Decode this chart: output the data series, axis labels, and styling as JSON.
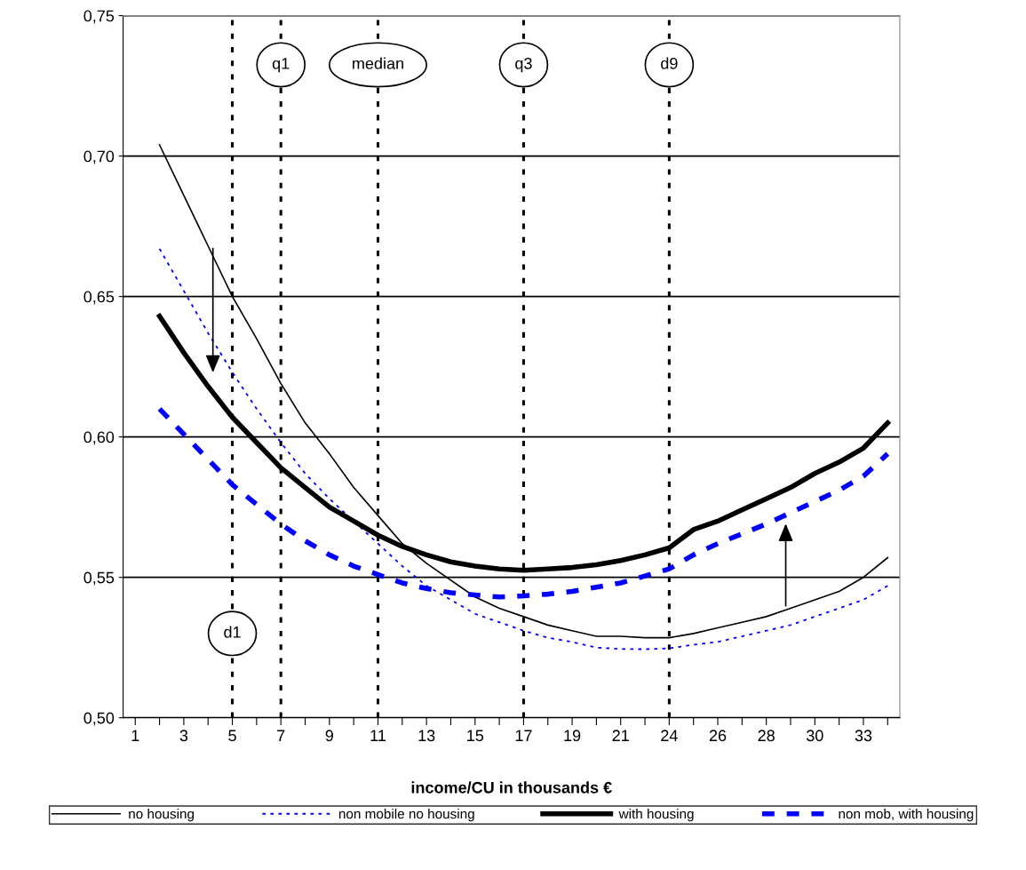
{
  "chart_data": {
    "type": "line",
    "xlabel": "income/CU in thousands €",
    "categories": [
      "1",
      null,
      "3",
      null,
      "5",
      null,
      "7",
      null,
      "9",
      null,
      "11",
      null,
      "13",
      null,
      "15",
      null,
      "17",
      null,
      "19",
      null,
      "21",
      null,
      "24",
      null,
      "26",
      null,
      "28",
      null,
      "30",
      null,
      "33",
      null
    ],
    "series": [
      {
        "name": "no housing",
        "color": "#000000",
        "line_style": "solid",
        "values": [
          null,
          0.704,
          0.686,
          0.668,
          0.65,
          0.635,
          0.619,
          0.605,
          0.594,
          0.582,
          0.572,
          0.562,
          0.555,
          0.549,
          0.543,
          0.539,
          0.536,
          0.533,
          0.531,
          0.529,
          0.529,
          0.5285,
          0.5285,
          0.53,
          0.532,
          0.534,
          0.536,
          0.539,
          0.542,
          0.545,
          0.55,
          0.557
        ]
      },
      {
        "name": "non mobile no housing",
        "color": "#0000ff",
        "line_style": "dotted",
        "values": [
          null,
          0.667,
          0.652,
          0.637,
          0.623,
          0.61,
          0.598,
          0.587,
          0.578,
          0.57,
          0.562,
          0.554,
          0.547,
          0.542,
          0.537,
          0.534,
          0.531,
          0.5285,
          0.527,
          0.525,
          0.5245,
          0.5244,
          0.5247,
          0.526,
          0.527,
          0.529,
          0.531,
          0.533,
          0.536,
          0.539,
          0.542,
          0.547
        ]
      },
      {
        "name": "with housing",
        "color": "#000000",
        "line_style": "solid",
        "values": [
          null,
          0.643,
          0.63,
          0.618,
          0.607,
          0.598,
          0.589,
          0.582,
          0.575,
          0.57,
          0.565,
          0.561,
          0.558,
          0.5555,
          0.554,
          0.553,
          0.5525,
          0.553,
          0.5535,
          0.5545,
          0.556,
          0.558,
          0.5605,
          0.567,
          0.57,
          0.574,
          0.578,
          0.582,
          0.587,
          0.591,
          0.596,
          0.605
        ]
      },
      {
        "name": "non mob, with housing",
        "color": "#0000ff",
        "line_style": "dashed",
        "values": [
          null,
          0.61,
          0.601,
          0.592,
          0.583,
          0.576,
          0.569,
          0.563,
          0.558,
          0.554,
          0.551,
          0.548,
          0.546,
          0.5445,
          0.5437,
          0.543,
          0.5434,
          0.544,
          0.545,
          0.5465,
          0.548,
          0.5505,
          0.553,
          0.558,
          0.562,
          0.5655,
          0.569,
          0.573,
          0.577,
          0.581,
          0.586,
          0.594
        ]
      }
    ],
    "ylim": [
      0.5,
      0.75
    ],
    "yticks": [
      {
        "value": 0.5,
        "label": "0,50"
      },
      {
        "value": 0.55,
        "label": "0,55"
      },
      {
        "value": 0.6,
        "label": "0,60"
      },
      {
        "value": 0.65,
        "label": "0,65"
      },
      {
        "value": 0.7,
        "label": "0,70"
      },
      {
        "value": 0.75,
        "label": "0,75"
      }
    ],
    "ref_lines": [
      {
        "axis": "x",
        "value": "5",
        "label": "d1",
        "color": "#000000",
        "line_style": "dotted"
      },
      {
        "axis": "x",
        "value": "7",
        "label": "q1",
        "color": "#000000",
        "line_style": "dotted"
      },
      {
        "axis": "x",
        "value": "11",
        "label": "median",
        "color": "#000000",
        "line_style": "dotted"
      },
      {
        "axis": "x",
        "value": "17",
        "label": "q3",
        "color": "#000000",
        "line_style": "dotted"
      },
      {
        "axis": "x",
        "value": "24",
        "label": "d9",
        "color": "#000000",
        "line_style": "dotted"
      }
    ],
    "grid": "y",
    "legend": "bottom",
    "marker": "none"
  }
}
